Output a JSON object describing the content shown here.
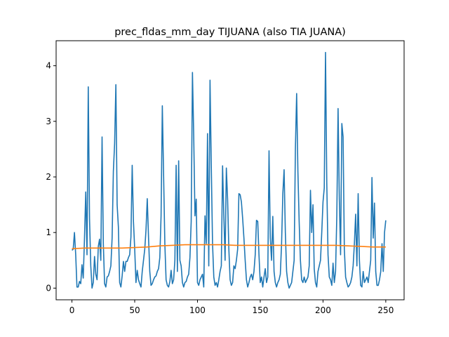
{
  "chart_data": {
    "type": "line",
    "title": "prec_fldas_mm_day TIJUANA (also TIA JUANA)",
    "xlabel": "",
    "ylabel": "",
    "xlim": [
      -12.6,
      264.6
    ],
    "ylim": [
      -0.21,
      4.45
    ],
    "xticks": [
      0,
      50,
      100,
      150,
      200,
      250
    ],
    "yticks": [
      0,
      1,
      2,
      3,
      4
    ],
    "xtick_labels": [
      "0",
      "50",
      "100",
      "150",
      "200",
      "250"
    ],
    "ytick_labels": [
      "0",
      "1",
      "2",
      "3",
      "4"
    ],
    "grid": false,
    "legend": "none",
    "series": [
      {
        "color": "#1f77b4",
        "y": [
          0.68,
          0.7,
          1.0,
          0.6,
          0.02,
          0.02,
          0.12,
          0.08,
          0.42,
          0.18,
          0.9,
          1.73,
          0.6,
          3.62,
          1.25,
          0.4,
          0.0,
          0.1,
          0.57,
          0.25,
          0.15,
          0.75,
          0.88,
          0.5,
          2.72,
          0.8,
          0.08,
          0.02,
          0.2,
          0.22,
          0.3,
          0.4,
          0.9,
          2.1,
          2.6,
          3.66,
          1.5,
          1.1,
          0.1,
          0.02,
          0.22,
          0.48,
          0.3,
          0.48,
          0.48,
          0.55,
          0.6,
          0.92,
          2.21,
          1.2,
          0.7,
          0.1,
          0.32,
          0.15,
          0.08,
          0.02,
          0.3,
          0.5,
          0.7,
          1.05,
          1.61,
          0.92,
          0.3,
          0.05,
          0.08,
          0.15,
          0.2,
          0.22,
          0.3,
          0.35,
          0.55,
          1.3,
          3.28,
          2.05,
          0.8,
          0.15,
          0.05,
          0.02,
          0.12,
          0.32,
          0.08,
          0.15,
          0.5,
          2.21,
          0.3,
          2.29,
          0.5,
          0.4,
          0.1,
          0.02,
          0.1,
          0.12,
          0.2,
          0.25,
          0.55,
          1.2,
          3.88,
          2.75,
          1.3,
          1.6,
          0.1,
          0.05,
          0.15,
          0.2,
          0.25,
          0.02,
          1.3,
          0.8,
          2.78,
          0.4,
          3.74,
          2.2,
          0.8,
          0.2,
          0.05,
          0.1,
          0.02,
          0.15,
          0.3,
          0.4,
          2.2,
          1.3,
          0.5,
          2.16,
          1.6,
          0.7,
          0.15,
          0.05,
          0.1,
          0.4,
          0.35,
          0.5,
          0.7,
          1.7,
          1.68,
          1.55,
          1.25,
          0.9,
          0.5,
          0.15,
          0.02,
          0.1,
          0.2,
          0.25,
          0.15,
          0.3,
          0.6,
          1.22,
          1.2,
          0.6,
          0.1,
          0.2,
          0.02,
          0.2,
          0.35,
          0.1,
          0.2,
          2.47,
          0.9,
          0.5,
          1.29,
          0.3,
          0.1,
          0.02,
          0.1,
          0.15,
          0.25,
          0.8,
          1.7,
          2.13,
          1.0,
          0.3,
          0.1,
          0.0,
          0.05,
          0.1,
          0.3,
          0.5,
          2.5,
          3.5,
          2.1,
          1.2,
          0.5,
          0.15,
          0.1,
          0.2,
          0.1,
          0.15,
          0.2,
          0.4,
          1.76,
          1.0,
          1.5,
          0.35,
          0.1,
          0.02,
          0.3,
          0.4,
          0.5,
          1.0,
          1.55,
          1.8,
          4.24,
          1.9,
          0.6,
          0.2,
          0.15,
          0.05,
          0.45,
          0.1,
          0.3,
          1.3,
          3.23,
          1.6,
          0.6,
          2.96,
          2.72,
          0.7,
          0.2,
          0.1,
          0.02,
          0.05,
          0.1,
          0.2,
          0.4,
          0.8,
          1.33,
          0.4,
          1.7,
          0.5,
          0.05,
          0.02,
          0.3,
          0.1,
          0.15,
          0.2,
          0.1,
          0.3,
          0.5,
          1.99,
          0.9,
          1.53,
          0.3,
          0.05,
          0.05,
          0.15,
          0.3,
          0.8,
          0.3,
          1.0,
          1.22
        ]
      },
      {
        "color": "#ff7f0e",
        "y": [
          0.71,
          0.72,
          0.72,
          0.72,
          0.72,
          0.73,
          0.74,
          0.76,
          0.77,
          0.78,
          0.78,
          0.78,
          0.78,
          0.77,
          0.77,
          0.77,
          0.77,
          0.77,
          0.77,
          0.77,
          0.77,
          0.77,
          0.76,
          0.75,
          0.74,
          0.74
        ]
      }
    ]
  }
}
